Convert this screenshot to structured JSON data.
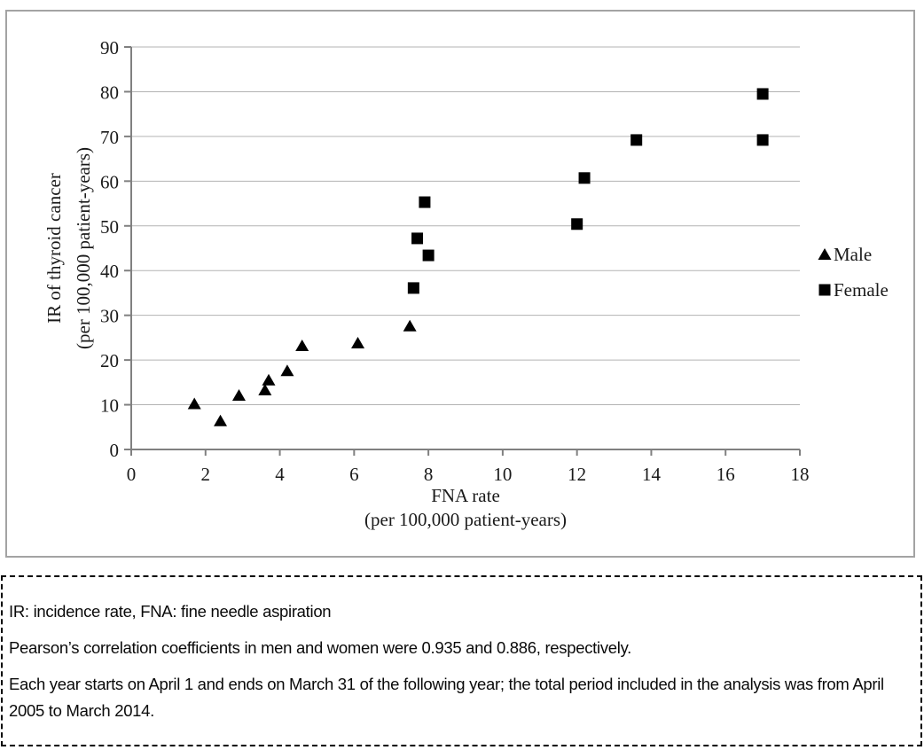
{
  "chart_data": {
    "type": "scatter",
    "title": "",
    "xlabel": "FNA rate",
    "xlabel_units": "(per 100,000 patient-years)",
    "ylabel": "IR of thyroid cancer",
    "ylabel_units": "(per 100,000 patient-years)",
    "xlim": [
      0,
      18
    ],
    "ylim": [
      0,
      90
    ],
    "xticks": [
      0,
      2,
      4,
      6,
      8,
      10,
      12,
      14,
      16,
      18
    ],
    "yticks": [
      0,
      10,
      20,
      30,
      40,
      50,
      60,
      70,
      80,
      90
    ],
    "grid": "horizontal",
    "legend_position": "right-middle",
    "series": [
      {
        "name": "Male",
        "marker": "triangle",
        "color": "#000000",
        "points": [
          [
            1.7,
            10.2
          ],
          [
            2.4,
            6.4
          ],
          [
            2.9,
            12.1
          ],
          [
            3.6,
            13.3
          ],
          [
            3.7,
            15.5
          ],
          [
            4.2,
            17.6
          ],
          [
            4.6,
            23.2
          ],
          [
            6.1,
            23.8
          ],
          [
            7.5,
            27.6
          ]
        ]
      },
      {
        "name": "Female",
        "marker": "square",
        "color": "#000000",
        "points": [
          [
            7.6,
            36.1
          ],
          [
            7.7,
            47.2
          ],
          [
            7.9,
            55.3
          ],
          [
            8.0,
            43.4
          ],
          [
            12.0,
            50.4
          ],
          [
            12.2,
            60.7
          ],
          [
            13.6,
            69.2
          ],
          [
            17.0,
            69.2
          ],
          [
            17.0,
            79.5
          ]
        ]
      }
    ]
  },
  "caption": {
    "note_abbreviations": "IR: incidence rate, FNA: fine needle aspiration",
    "note_correlation": "Pearson’s correlation coefficients in men and women were 0.935 and 0.886, respectively.",
    "note_period": "Each year starts on April 1 and ends on March 31 of the following year; the total period included in the analysis was from April 2005 to March 2014."
  },
  "colors": {
    "grid": "#b3b3b3",
    "axis": "#808080",
    "marker": "#000000",
    "text": "#1a1a1a",
    "figure_border": "#a3a3a3"
  }
}
